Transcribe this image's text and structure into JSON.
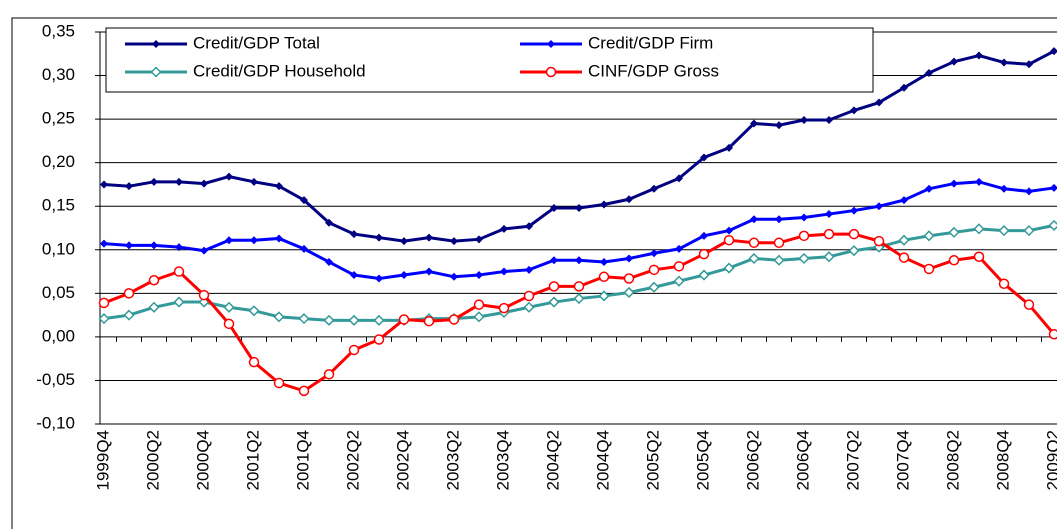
{
  "chart_data": {
    "type": "line",
    "categories": [
      "1999Q4",
      null,
      "2000Q2",
      null,
      "2000Q4",
      null,
      "2001Q2",
      null,
      "2001Q4",
      null,
      "2002Q2",
      null,
      "2002Q4",
      null,
      "2003Q2",
      null,
      "2003Q4",
      null,
      "2004Q2",
      null,
      "2004Q4",
      null,
      "2005Q2",
      null,
      "2005Q4",
      null,
      "2006Q2",
      null,
      "2006Q4",
      null,
      "2007Q2",
      null,
      "2007Q4",
      null,
      "2008Q2",
      null,
      "2008Q4",
      null,
      "2009Q2"
    ],
    "ylim": [
      -0.1,
      0.35
    ],
    "yticks": [
      {
        "value": -0.1,
        "label": "-0,10"
      },
      {
        "value": -0.05,
        "label": "-0,05"
      },
      {
        "value": 0,
        "label": "0,00"
      },
      {
        "value": 0.05,
        "label": "0,05"
      },
      {
        "value": 0.1,
        "label": "0,10"
      },
      {
        "value": 0.15,
        "label": "0,15"
      },
      {
        "value": 0.2,
        "label": "0,20"
      },
      {
        "value": 0.25,
        "label": "0,25"
      },
      {
        "value": 0.3,
        "label": "0,30"
      },
      {
        "value": 0.35,
        "label": "0,35"
      }
    ],
    "grid": true,
    "series": [
      {
        "name": "Credit/GDP Total",
        "color": "#000080",
        "values": [
          0.175,
          0.173,
          0.178,
          0.178,
          0.176,
          0.184,
          0.178,
          0.173,
          0.157,
          0.131,
          0.118,
          0.114,
          0.11,
          0.114,
          0.11,
          0.112,
          0.124,
          0.127,
          0.148,
          0.148,
          0.152,
          0.158,
          0.17,
          0.182,
          0.206,
          0.217,
          0.245,
          0.243,
          0.249,
          0.249,
          0.26,
          0.269,
          0.286,
          0.303,
          0.316,
          0.323,
          0.315,
          0.313,
          0.328
        ]
      },
      {
        "name": "Credit/GDP Firm",
        "color": "#0000ff",
        "values": [
          0.107,
          0.105,
          0.105,
          0.103,
          0.099,
          0.111,
          0.111,
          0.113,
          0.101,
          0.086,
          0.071,
          0.067,
          0.071,
          0.075,
          0.069,
          0.071,
          0.075,
          0.077,
          0.088,
          0.088,
          0.086,
          0.09,
          0.096,
          0.101,
          0.116,
          0.122,
          0.135,
          0.135,
          0.137,
          0.141,
          0.145,
          0.15,
          0.157,
          0.17,
          0.176,
          0.178,
          0.17,
          0.167,
          0.171
        ]
      },
      {
        "name": "Credit/GDP Household",
        "color": "#339999",
        "values": [
          0.021,
          0.025,
          0.034,
          0.04,
          0.04,
          0.034,
          0.03,
          0.023,
          0.021,
          0.019,
          0.019,
          0.019,
          0.019,
          0.021,
          0.021,
          0.023,
          0.028,
          0.034,
          0.04,
          0.044,
          0.047,
          0.051,
          0.057,
          0.064,
          0.071,
          0.079,
          0.09,
          0.088,
          0.09,
          0.092,
          0.099,
          0.103,
          0.111,
          0.116,
          0.12,
          0.124,
          0.122,
          0.122,
          0.128
        ]
      },
      {
        "name": "CINF/GDP Gross",
        "color": "#ff0000",
        "values": [
          0.039,
          0.05,
          0.065,
          0.075,
          0.048,
          0.015,
          -0.029,
          -0.053,
          -0.062,
          -0.043,
          -0.015,
          -0.003,
          0.02,
          0.018,
          0.02,
          0.037,
          0.033,
          0.047,
          0.058,
          0.058,
          0.069,
          0.067,
          0.077,
          0.081,
          0.095,
          0.111,
          0.108,
          0.108,
          0.116,
          0.118,
          0.118,
          0.11,
          0.091,
          0.078,
          0.088,
          0.092,
          0.061,
          0.037,
          0.003
        ]
      }
    ]
  }
}
